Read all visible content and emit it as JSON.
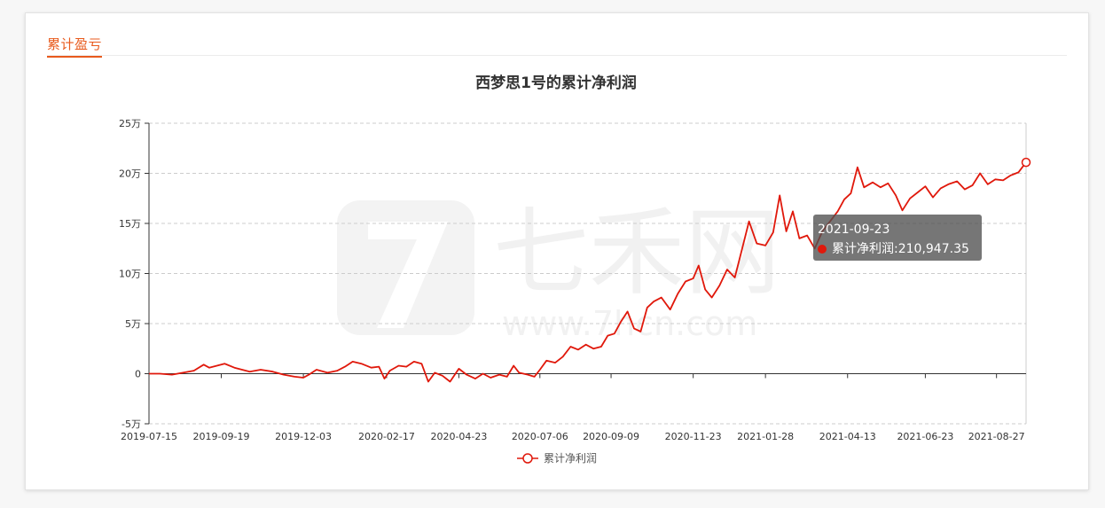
{
  "section_title": "累计盈亏",
  "colors": {
    "accent": "#e85a1c",
    "line": "#e0180b",
    "tooltip_bg": "#505050"
  },
  "watermark": {
    "brand": "七禾网",
    "site": "www.7hcn.com"
  },
  "tooltip": {
    "date": "2021-09-23",
    "series": "累计净利润",
    "value_text": "210,947.35"
  },
  "chart_data": {
    "type": "line",
    "title": "西梦思1号的累计净利润",
    "xlabel": "",
    "ylabel": "",
    "grid": true,
    "legend": "bottom-center",
    "ylim": [
      -50000,
      250000
    ],
    "y_ticks": [
      -50000,
      0,
      50000,
      100000,
      150000,
      200000,
      250000
    ],
    "y_tick_labels": [
      "-5万",
      "0",
      "5万",
      "10万",
      "15万",
      "20万",
      "25万"
    ],
    "xlim": [
      "2019-07-15",
      "2021-09-23"
    ],
    "x_tick_labels": [
      "2019-07-15",
      "2019-09-19",
      "2019-12-03",
      "2020-02-17",
      "2020-04-23",
      "2020-07-06",
      "2020-09-09",
      "2020-11-23",
      "2021-01-28",
      "2021-04-13",
      "2021-06-23",
      "2021-08-27"
    ],
    "series": [
      {
        "name": "累计净利润",
        "points": [
          [
            "2019-07-15",
            0
          ],
          [
            "2019-07-25",
            0
          ],
          [
            "2019-08-05",
            -1000
          ],
          [
            "2019-08-15",
            1000
          ],
          [
            "2019-08-25",
            3000
          ],
          [
            "2019-09-03",
            9000
          ],
          [
            "2019-09-08",
            6000
          ],
          [
            "2019-09-15",
            8000
          ],
          [
            "2019-09-22",
            10000
          ],
          [
            "2019-10-01",
            6000
          ],
          [
            "2019-10-15",
            2000
          ],
          [
            "2019-10-25",
            4000
          ],
          [
            "2019-11-05",
            2000
          ],
          [
            "2019-11-15",
            -1000
          ],
          [
            "2019-11-25",
            -3000
          ],
          [
            "2019-12-03",
            -4000
          ],
          [
            "2019-12-08",
            -1000
          ],
          [
            "2019-12-15",
            4000
          ],
          [
            "2019-12-25",
            1000
          ],
          [
            "2020-01-03",
            3000
          ],
          [
            "2020-01-10",
            7000
          ],
          [
            "2020-01-17",
            12000
          ],
          [
            "2020-01-25",
            10000
          ],
          [
            "2020-02-03",
            6000
          ],
          [
            "2020-02-10",
            7000
          ],
          [
            "2020-02-15",
            -5000
          ],
          [
            "2020-02-20",
            3000
          ],
          [
            "2020-02-28",
            8000
          ],
          [
            "2020-03-06",
            7000
          ],
          [
            "2020-03-13",
            12000
          ],
          [
            "2020-03-20",
            10000
          ],
          [
            "2020-03-26",
            -8000
          ],
          [
            "2020-04-01",
            1000
          ],
          [
            "2020-04-08",
            -2000
          ],
          [
            "2020-04-15",
            -8000
          ],
          [
            "2020-04-23",
            5000
          ],
          [
            "2020-04-30",
            -1000
          ],
          [
            "2020-05-08",
            -5000
          ],
          [
            "2020-05-15",
            0
          ],
          [
            "2020-05-22",
            -4000
          ],
          [
            "2020-05-30",
            -1000
          ],
          [
            "2020-06-06",
            -3000
          ],
          [
            "2020-06-12",
            8000
          ],
          [
            "2020-06-17",
            1000
          ],
          [
            "2020-06-25",
            -1000
          ],
          [
            "2020-07-01",
            -3000
          ],
          [
            "2020-07-06",
            4000
          ],
          [
            "2020-07-12",
            13000
          ],
          [
            "2020-07-20",
            11000
          ],
          [
            "2020-07-27",
            17000
          ],
          [
            "2020-08-03",
            27000
          ],
          [
            "2020-08-10",
            24000
          ],
          [
            "2020-08-17",
            29000
          ],
          [
            "2020-08-24",
            25000
          ],
          [
            "2020-08-31",
            27000
          ],
          [
            "2020-09-06",
            38000
          ],
          [
            "2020-09-12",
            40000
          ],
          [
            "2020-09-18",
            52000
          ],
          [
            "2020-09-24",
            62000
          ],
          [
            "2020-09-30",
            45000
          ],
          [
            "2020-10-06",
            42000
          ],
          [
            "2020-10-12",
            66000
          ],
          [
            "2020-10-18",
            72000
          ],
          [
            "2020-10-25",
            76000
          ],
          [
            "2020-11-02",
            64000
          ],
          [
            "2020-11-09",
            80000
          ],
          [
            "2020-11-16",
            92000
          ],
          [
            "2020-11-23",
            95000
          ],
          [
            "2020-11-28",
            108000
          ],
          [
            "2020-12-04",
            84000
          ],
          [
            "2020-12-10",
            76000
          ],
          [
            "2020-12-17",
            88000
          ],
          [
            "2020-12-24",
            104000
          ],
          [
            "2020-12-31",
            96000
          ],
          [
            "2021-01-07",
            126000
          ],
          [
            "2021-01-13",
            152000
          ],
          [
            "2021-01-20",
            130000
          ],
          [
            "2021-01-28",
            128000
          ],
          [
            "2021-02-04",
            141000
          ],
          [
            "2021-02-10",
            178000
          ],
          [
            "2021-02-16",
            142000
          ],
          [
            "2021-02-22",
            162000
          ],
          [
            "2021-02-28",
            135000
          ],
          [
            "2021-03-07",
            138000
          ],
          [
            "2021-03-14",
            125000
          ],
          [
            "2021-03-21",
            142000
          ],
          [
            "2021-03-28",
            152000
          ],
          [
            "2021-04-04",
            162000
          ],
          [
            "2021-04-10",
            174000
          ],
          [
            "2021-04-16",
            180000
          ],
          [
            "2021-04-22",
            206000
          ],
          [
            "2021-04-28",
            186000
          ],
          [
            "2021-05-06",
            191000
          ],
          [
            "2021-05-13",
            186000
          ],
          [
            "2021-05-20",
            190000
          ],
          [
            "2021-05-27",
            178000
          ],
          [
            "2021-06-02",
            163000
          ],
          [
            "2021-06-09",
            175000
          ],
          [
            "2021-06-16",
            181000
          ],
          [
            "2021-06-23",
            187000
          ],
          [
            "2021-06-30",
            176000
          ],
          [
            "2021-07-07",
            185000
          ],
          [
            "2021-07-14",
            189000
          ],
          [
            "2021-07-22",
            192000
          ],
          [
            "2021-07-29",
            184000
          ],
          [
            "2021-08-05",
            188000
          ],
          [
            "2021-08-12",
            200000
          ],
          [
            "2021-08-19",
            189000
          ],
          [
            "2021-08-26",
            194000
          ],
          [
            "2021-09-02",
            193000
          ],
          [
            "2021-09-09",
            198000
          ],
          [
            "2021-09-16",
            201000
          ],
          [
            "2021-09-23",
            210947.35
          ]
        ]
      }
    ]
  }
}
